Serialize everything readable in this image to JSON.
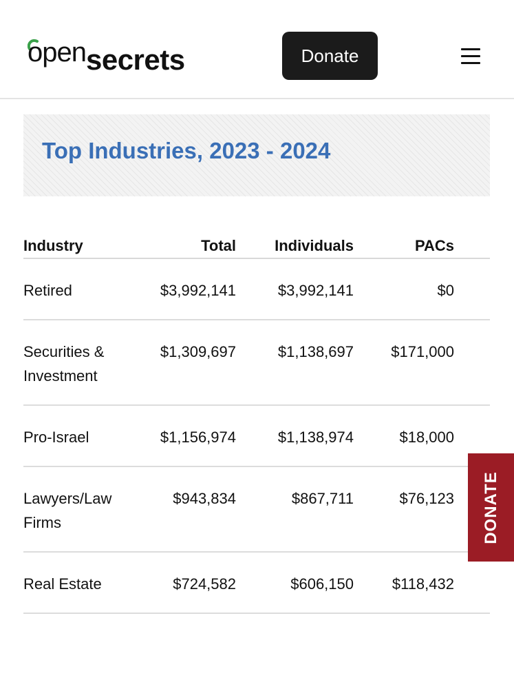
{
  "header": {
    "logo_open": "open",
    "logo_secrets": "secrets",
    "logo_accent_color": "#3aa14a",
    "donate_label": "Donate",
    "menu_icon": "hamburger-menu-icon"
  },
  "section": {
    "title": "Top Industries, 2023 - 2024",
    "title_color": "#3a6fb6"
  },
  "table": {
    "columns": [
      "Industry",
      "Total",
      "Individuals",
      "PACs"
    ],
    "rows": [
      {
        "industry": "Retired",
        "total": "$3,992,141",
        "individuals": "$3,992,141",
        "pacs": "$0"
      },
      {
        "industry": "Securities & Investment",
        "total": "$1,309,697",
        "individuals": "$1,138,697",
        "pacs": "$171,000"
      },
      {
        "industry": "Pro-Israel",
        "total": "$1,156,974",
        "individuals": "$1,138,974",
        "pacs": "$18,000"
      },
      {
        "industry": "Lawyers/Law Firms",
        "total": "$943,834",
        "individuals": "$867,711",
        "pacs": "$76,123"
      },
      {
        "industry": "Real Estate",
        "total": "$724,582",
        "individuals": "$606,150",
        "pacs": "$118,432"
      }
    ]
  },
  "side_tab": {
    "label": "DONATE",
    "color": "#9b1c25"
  }
}
